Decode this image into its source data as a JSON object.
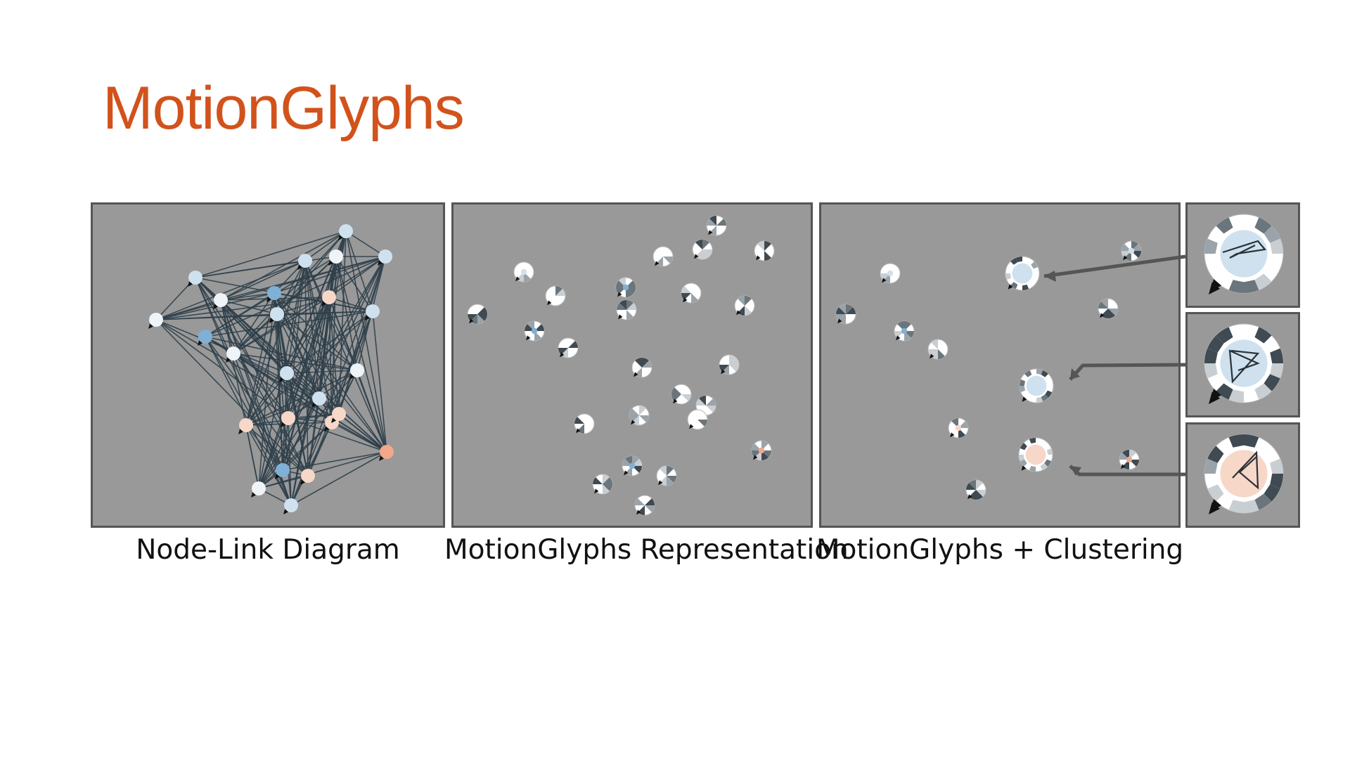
{
  "slide": {
    "title": "MotionGlyphs"
  },
  "panels": [
    {
      "id": "node-link",
      "caption": "Node-Link Diagram"
    },
    {
      "id": "motionglyphs",
      "caption": "MotionGlyphs Representation"
    },
    {
      "id": "clustering",
      "caption": "MotionGlyphs + Clustering"
    }
  ],
  "colors": {
    "title": "#d2521c",
    "panel_bg": "#999999",
    "panel_border": "#555555",
    "edge": "#2f3f4a",
    "node_light_blue": "#cfe1ee",
    "node_blue": "#7fb1d6",
    "node_white": "#eef4f8",
    "node_peach": "#f6d7c8",
    "node_salmon": "#f2a88a"
  },
  "icons": [
    "glyph-icon",
    "arrow-icon",
    "pointer-icon"
  ]
}
